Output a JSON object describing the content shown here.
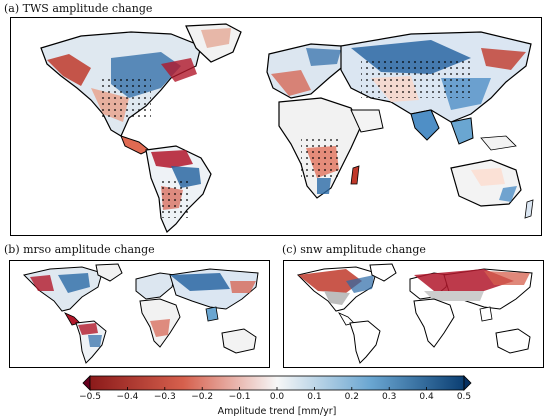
{
  "panels": {
    "a": {
      "title": "(a)  TWS amplitude change"
    },
    "b": {
      "title": "(b)  mrso amplitude change"
    },
    "c": {
      "title": "(c)  snw amplitude change"
    }
  },
  "colorbar": {
    "ticks": [
      "−0.5",
      "−0.4",
      "−0.3",
      "−0.2",
      "−0.1",
      "0.0",
      "0.1",
      "0.2",
      "0.3",
      "0.4",
      "0.5"
    ],
    "label": "Amplitude trend [mm/yr]",
    "range": [
      -0.5,
      0.5
    ],
    "colors": {
      "negative_strong": "#8b1a1a",
      "negative_mid": "#d6604d",
      "neutral": "#f7f7f7",
      "positive_mid": "#6aa6d1",
      "positive_strong": "#0b3f73"
    }
  }
}
